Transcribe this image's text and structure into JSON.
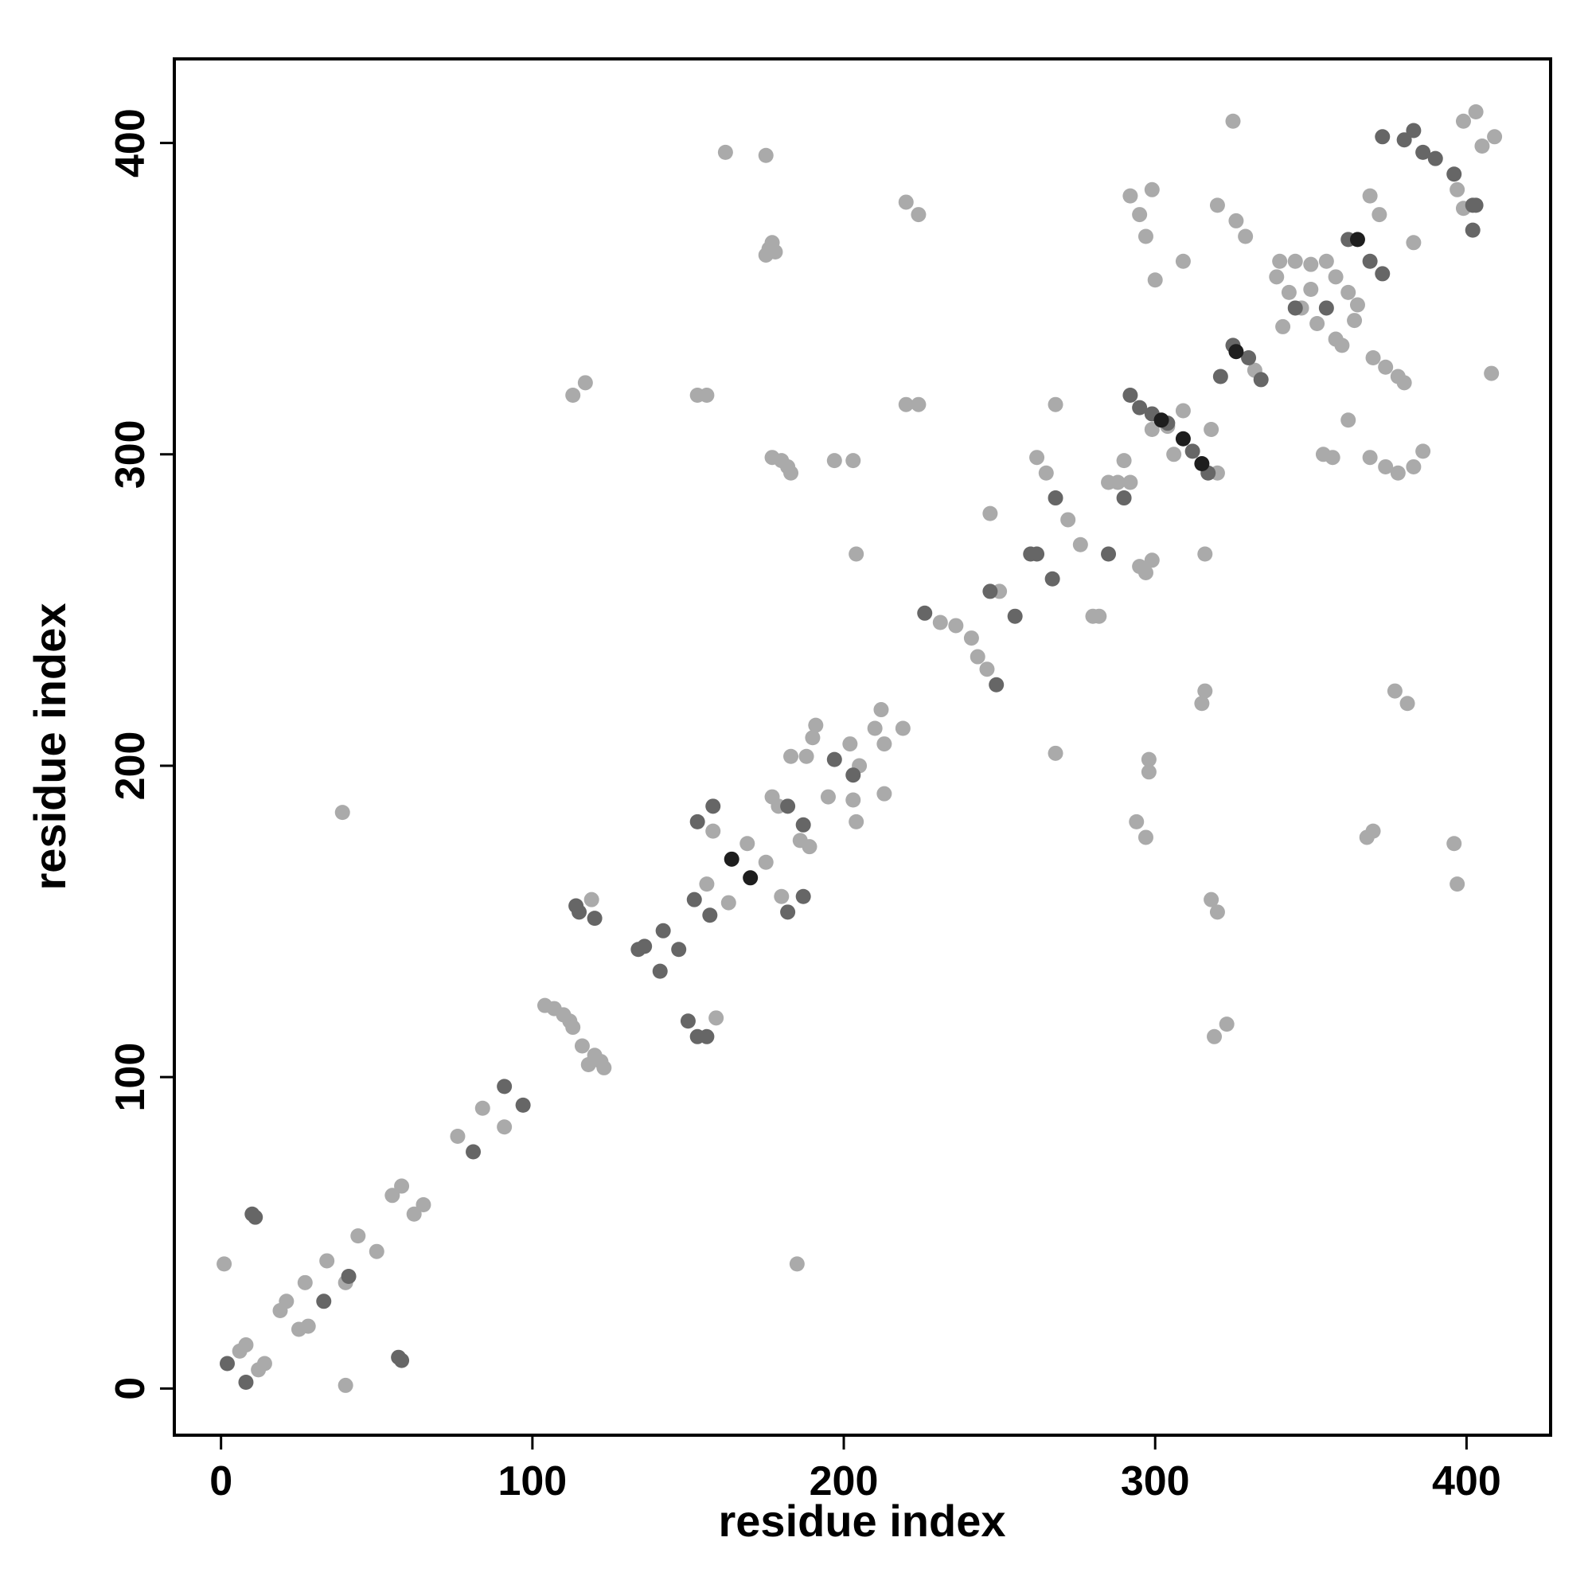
{
  "chart_data": {
    "type": "scatter",
    "xlabel": "residue index",
    "ylabel": "residue index",
    "xlim": [
      -15,
      427
    ],
    "ylim": [
      -15,
      427
    ],
    "xticks": [
      0,
      100,
      200,
      300,
      400
    ],
    "yticks": [
      0,
      100,
      200,
      300,
      400
    ],
    "series": [
      {
        "color": "#aaaaaa",
        "x": [
          1,
          6,
          8,
          12,
          14,
          19,
          21,
          25,
          28,
          27,
          34,
          40,
          44,
          50,
          40,
          39,
          55,
          58,
          62,
          65,
          76,
          84,
          91,
          104,
          107,
          110,
          112,
          113,
          118,
          120,
          116,
          122,
          123,
          119,
          113,
          117,
          159,
          158,
          156,
          163,
          169,
          175,
          153,
          156,
          162,
          175,
          176,
          177,
          178,
          175,
          177,
          179,
          180,
          177,
          180,
          182,
          183,
          186,
          189,
          183,
          188,
          191,
          190,
          195,
          197,
          203,
          204,
          202,
          205,
          203,
          204,
          210,
          212,
          213,
          213,
          219,
          220,
          224,
          220,
          224,
          231,
          236,
          241,
          243,
          246,
          250,
          247,
          262,
          265,
          268,
          272,
          276,
          280,
          282,
          268,
          285,
          288,
          290,
          295,
          299,
          297,
          292,
          295,
          297,
          299,
          300,
          294,
          297,
          298,
          298,
          309,
          320,
          309,
          316,
          316,
          315,
          318,
          320,
          319,
          323,
          325,
          320,
          326,
          329,
          318,
          332,
          339,
          343,
          347,
          352,
          358,
          341,
          350,
          358,
          340,
          345,
          350,
          355,
          364,
          362,
          365,
          360,
          370,
          374,
          378,
          380,
          369,
          374,
          378,
          383,
          386,
          369,
          372,
          354,
          357,
          362,
          368,
          370,
          377,
          381,
          383,
          397,
          399,
          399,
          403,
          405,
          409,
          408,
          396,
          397,
          185,
          304,
          306,
          299,
          292
        ],
        "y": [
          40,
          12,
          14,
          6,
          8,
          25,
          28,
          19,
          20,
          34,
          41,
          34,
          49,
          44,
          1,
          185,
          62,
          65,
          56,
          59,
          81,
          90,
          84,
          123,
          122,
          120,
          118,
          116,
          104,
          107,
          110,
          105,
          103,
          157,
          319,
          323,
          119,
          179,
          162,
          156,
          175,
          169,
          319,
          319,
          397,
          396,
          366,
          368,
          365,
          364,
          190,
          187,
          158,
          299,
          298,
          296,
          294,
          176,
          174,
          203,
          203,
          213,
          209,
          190,
          298,
          298,
          268,
          207,
          200,
          189,
          182,
          212,
          218,
          207,
          191,
          212,
          316,
          316,
          381,
          377,
          246,
          245,
          241,
          235,
          231,
          256,
          281,
          299,
          294,
          316,
          279,
          271,
          248,
          248,
          204,
          291,
          291,
          298,
          264,
          266,
          262,
          383,
          377,
          370,
          385,
          356,
          182,
          177,
          202,
          198,
          314,
          294,
          362,
          268,
          224,
          220,
          157,
          153,
          113,
          117,
          407,
          380,
          375,
          370,
          308,
          327,
          357,
          352,
          347,
          342,
          337,
          341,
          353,
          357,
          362,
          362,
          361,
          362,
          343,
          352,
          348,
          335,
          331,
          328,
          325,
          323,
          299,
          296,
          294,
          296,
          301,
          383,
          377,
          300,
          299,
          311,
          177,
          179,
          224,
          220,
          368,
          385,
          379,
          407,
          410,
          399,
          402,
          326,
          175,
          162,
          40,
          309,
          300,
          308,
          291
        ]
      },
      {
        "color": "#666666",
        "x": [
          2,
          8,
          10,
          11,
          57,
          58,
          33,
          41,
          81,
          91,
          97,
          114,
          115,
          120,
          134,
          136,
          141,
          142,
          147,
          150,
          153,
          156,
          152,
          153,
          158,
          157,
          182,
          182,
          187,
          187,
          197,
          203,
          226,
          249,
          247,
          255,
          260,
          262,
          267,
          268,
          285,
          290,
          292,
          295,
          299,
          304,
          312,
          317,
          321,
          325,
          330,
          334,
          345,
          355,
          362,
          369,
          373,
          373,
          380,
          383,
          386,
          390,
          396,
          402,
          403,
          402
        ],
        "y": [
          8,
          2,
          56,
          55,
          10,
          9,
          28,
          36,
          76,
          97,
          91,
          155,
          153,
          151,
          141,
          142,
          134,
          147,
          141,
          118,
          113,
          113,
          157,
          182,
          187,
          152,
          187,
          153,
          158,
          181,
          202,
          197,
          249,
          226,
          256,
          248,
          268,
          268,
          260,
          286,
          268,
          286,
          319,
          315,
          313,
          310,
          301,
          294,
          325,
          335,
          331,
          324,
          347,
          347,
          369,
          362,
          358,
          402,
          401,
          404,
          397,
          395,
          390,
          380,
          380,
          372
        ]
      },
      {
        "color": "#1e1e1e",
        "x": [
          164,
          170,
          302,
          309,
          315,
          365,
          326
        ],
        "y": [
          170,
          164,
          311,
          305,
          297,
          369,
          333
        ]
      }
    ]
  }
}
